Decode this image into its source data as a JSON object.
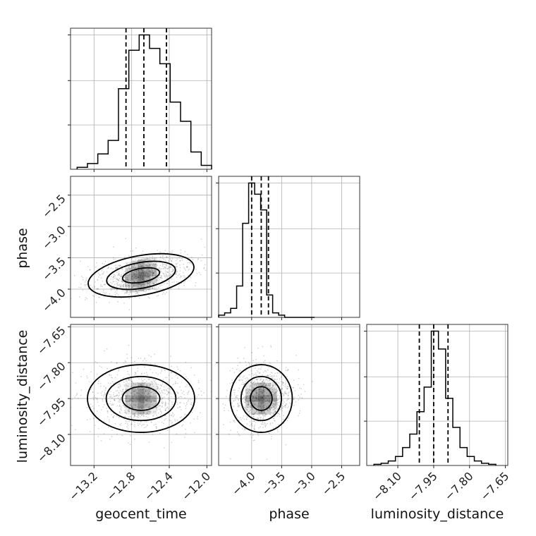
{
  "figure": {
    "type": "corner-plot"
  },
  "chart_data": [
    {
      "type": "histogram",
      "panel": "geocent_time marginal",
      "param": "geocent_time",
      "bin_edges": [
        -13.38,
        -13.27,
        -13.16,
        -13.05,
        -12.94,
        -12.83,
        -12.72,
        -12.61,
        -12.5,
        -12.39,
        -12.28,
        -12.17,
        -12.06,
        -11.95
      ],
      "values": [
        1,
        3,
        8,
        15,
        42,
        62,
        70,
        63,
        55,
        35,
        25,
        9,
        2
      ],
      "quantile_lines": [
        -12.86,
        -12.67,
        -12.43
      ],
      "xlim": [
        -13.45,
        -11.95
      ],
      "grid": true
    },
    {
      "type": "histogram",
      "panel": "phase marginal",
      "param": "phase",
      "bin_edges": [
        -4.55,
        -4.45,
        -4.35,
        -4.25,
        -4.15,
        -4.05,
        -3.95,
        -3.85,
        -3.75,
        -3.65,
        -3.55,
        -3.45,
        -3.35,
        -3.25,
        -3.15,
        -3.05,
        -2.95
      ],
      "values": [
        1,
        2,
        4,
        14,
        42,
        60,
        55,
        48,
        10,
        2,
        1,
        0,
        0,
        0,
        0,
        0
      ],
      "quantile_lines": [
        -4.0,
        -3.84,
        -3.72
      ],
      "xlim": [
        -4.55,
        -2.2
      ],
      "grid": true
    },
    {
      "type": "histogram",
      "panel": "luminosity_distance marginal",
      "param": "luminosity_distance",
      "bin_edges": [
        -8.2,
        -8.17,
        -8.14,
        -8.11,
        -8.08,
        -8.05,
        -8.02,
        -7.99,
        -7.96,
        -7.93,
        -7.9,
        -7.87,
        -7.84,
        -7.81,
        -7.78,
        -7.75,
        -7.72,
        -7.69
      ],
      "values": [
        0.5,
        1,
        2,
        4,
        8,
        14,
        24,
        35,
        60,
        52,
        30,
        17,
        8,
        4,
        2,
        1,
        0.5
      ],
      "quantile_lines": [
        -8.01,
        -7.95,
        -7.89
      ],
      "xlim": [
        -8.23,
        -7.64
      ],
      "grid": true
    },
    {
      "type": "scatter-contour",
      "panel": "phase vs geocent_time",
      "x_param": "geocent_time",
      "y_param": "phase",
      "xlim": [
        -13.45,
        -11.95
      ],
      "ylim": [
        -4.45,
        -2.2
      ],
      "center": [
        -12.7,
        -3.78
      ],
      "grid": true
    },
    {
      "type": "scatter-contour",
      "panel": "luminosity_distance vs geocent_time",
      "x_param": "geocent_time",
      "y_param": "luminosity_distance",
      "xlim": [
        -13.45,
        -11.95
      ],
      "ylim": [
        -8.23,
        -7.64
      ],
      "center": [
        -12.7,
        -7.95
      ],
      "grid": true
    },
    {
      "type": "scatter-contour",
      "panel": "luminosity_distance vs phase",
      "x_param": "phase",
      "y_param": "luminosity_distance",
      "xlim": [
        -4.55,
        -2.2
      ],
      "ylim": [
        -8.23,
        -7.64
      ],
      "center": [
        -3.84,
        -7.95
      ],
      "grid": true
    }
  ],
  "axes": {
    "geocent_time": {
      "label": "geocent_time",
      "ticks": [
        -13.2,
        -12.8,
        -12.4,
        -12.0
      ],
      "tick_labels": [
        "−13.2",
        "−12.8",
        "−12.4",
        "−12.0"
      ]
    },
    "phase": {
      "label": "phase",
      "ticks": [
        -4.0,
        -3.5,
        -3.0,
        -2.5
      ],
      "tick_labels": [
        "−4.0",
        "−3.5",
        "−3.0",
        "−2.5"
      ]
    },
    "luminosity_distance": {
      "label": "luminosity_distance",
      "ticks": [
        -8.1,
        -7.95,
        -7.8,
        -7.65
      ],
      "tick_labels": [
        "−8.10",
        "−7.95",
        "−7.80",
        "−7.65"
      ]
    }
  }
}
